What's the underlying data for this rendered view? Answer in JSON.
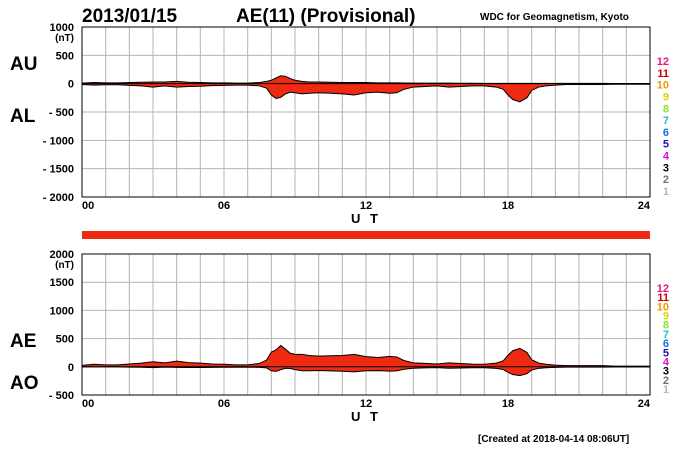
{
  "header": {
    "date": "2013/01/15",
    "title": "AE(11) (Provisional)",
    "source": "WDC for Geomagnetism, Kyoto"
  },
  "footer": {
    "created": "[Created at 2018-04-14 08:06UT]"
  },
  "colors": {
    "fill": "#ee2a12",
    "line": "#000000",
    "grid": "#b4b4b4",
    "bar": "#ee2a12"
  },
  "legend": {
    "items": [
      {
        "label": "12",
        "color": "#e8177f"
      },
      {
        "label": "11",
        "color": "#cc0000"
      },
      {
        "label": "10",
        "color": "#ee9a00"
      },
      {
        "label": "9",
        "color": "#d8d800"
      },
      {
        "label": "8",
        "color": "#90e030"
      },
      {
        "label": "7",
        "color": "#20c0d0"
      },
      {
        "label": "6",
        "color": "#1070e0"
      },
      {
        "label": "5",
        "color": "#2010b0"
      },
      {
        "label": "4",
        "color": "#d010d0"
      },
      {
        "label": "3",
        "color": "#000000"
      },
      {
        "label": "2",
        "color": "#707070"
      },
      {
        "label": "1",
        "color": "#b8b8b8"
      }
    ]
  },
  "chart_data": [
    {
      "type": "area",
      "upper_label": "AU",
      "lower_label": "AL",
      "unit": "(nT)",
      "xlabel": "U T",
      "xlim": [
        0,
        24
      ],
      "ylim": [
        -2000,
        1000
      ],
      "yticks": [
        1000,
        500,
        0,
        -500,
        -1000,
        -1500,
        -2000
      ],
      "ytick_labels": [
        "1000",
        "500",
        "0",
        "- 500",
        "- 1000",
        "- 1500",
        "- 2000"
      ],
      "xticks": [
        0,
        6,
        12,
        18,
        24
      ],
      "xtick_labels": [
        "00",
        "06",
        "12",
        "18",
        "24"
      ],
      "grid": true,
      "x": [
        0,
        0.5,
        1,
        1.5,
        2,
        2.5,
        3,
        3.5,
        4,
        4.5,
        5,
        5.5,
        6,
        6.5,
        7,
        7.5,
        7.8,
        8,
        8.2,
        8.4,
        8.6,
        8.8,
        9,
        9.3,
        9.6,
        10,
        10.5,
        11,
        11.5,
        12,
        12.5,
        13,
        13.3,
        13.6,
        14,
        14.5,
        15,
        15.5,
        16,
        16.5,
        17,
        17.5,
        17.8,
        18,
        18.2,
        18.5,
        18.8,
        19,
        19.3,
        19.6,
        20,
        20.5,
        21,
        21.5,
        22,
        22.5,
        23,
        23.5,
        24
      ],
      "series": [
        {
          "name": "AU",
          "values": [
            10,
            20,
            15,
            15,
            20,
            25,
            30,
            30,
            40,
            25,
            20,
            15,
            15,
            10,
            10,
            20,
            40,
            60,
            100,
            140,
            130,
            90,
            60,
            40,
            30,
            30,
            25,
            20,
            20,
            20,
            15,
            15,
            15,
            12,
            10,
            10,
            10,
            10,
            8,
            8,
            5,
            5,
            5,
            5,
            5,
            5,
            5,
            5,
            5,
            5,
            5,
            5,
            5,
            5,
            5,
            3,
            3,
            3,
            3
          ]
        },
        {
          "name": "AL",
          "values": [
            -15,
            -25,
            -20,
            -20,
            -30,
            -40,
            -60,
            -40,
            -60,
            -50,
            -45,
            -35,
            -30,
            -25,
            -25,
            -40,
            -80,
            -200,
            -260,
            -240,
            -180,
            -150,
            -160,
            -180,
            -170,
            -160,
            -170,
            -180,
            -200,
            -160,
            -150,
            -170,
            -160,
            -100,
            -60,
            -50,
            -40,
            -60,
            -50,
            -40,
            -40,
            -60,
            -100,
            -200,
            -280,
            -320,
            -250,
            -120,
            -60,
            -40,
            -25,
            -15,
            -15,
            -15,
            -15,
            -10,
            -10,
            -10,
            -10
          ]
        }
      ]
    },
    {
      "type": "area",
      "upper_label": "AE",
      "lower_label": "AO",
      "unit": "(nT)",
      "xlabel": "U T",
      "xlim": [
        0,
        24
      ],
      "ylim": [
        -500,
        2000
      ],
      "yticks": [
        2000,
        1500,
        1000,
        500,
        0,
        -500
      ],
      "ytick_labels": [
        "2000",
        "1500",
        "1000",
        "500",
        "0",
        "- 500"
      ],
      "xticks": [
        0,
        6,
        12,
        18,
        24
      ],
      "xtick_labels": [
        "00",
        "06",
        "12",
        "18",
        "24"
      ],
      "grid": true,
      "x": [
        0,
        0.5,
        1,
        1.5,
        2,
        2.5,
        3,
        3.5,
        4,
        4.5,
        5,
        5.5,
        6,
        6.5,
        7,
        7.5,
        7.8,
        8,
        8.2,
        8.4,
        8.6,
        8.8,
        9,
        9.3,
        9.6,
        10,
        10.5,
        11,
        11.5,
        12,
        12.5,
        13,
        13.3,
        13.6,
        14,
        14.5,
        15,
        15.5,
        16,
        16.5,
        17,
        17.5,
        17.8,
        18,
        18.2,
        18.5,
        18.8,
        19,
        19.3,
        19.6,
        20,
        20.5,
        21,
        21.5,
        22,
        22.5,
        23,
        23.5,
        24
      ],
      "series": [
        {
          "name": "AE",
          "values": [
            25,
            45,
            35,
            35,
            50,
            65,
            90,
            70,
            100,
            75,
            65,
            50,
            45,
            35,
            35,
            60,
            120,
            260,
            300,
            380,
            310,
            240,
            220,
            220,
            200,
            190,
            195,
            200,
            220,
            180,
            165,
            185,
            175,
            112,
            70,
            60,
            50,
            70,
            58,
            48,
            45,
            65,
            105,
            205,
            285,
            325,
            255,
            125,
            65,
            45,
            30,
            20,
            20,
            20,
            20,
            13,
            13,
            13,
            13
          ]
        },
        {
          "name": "AO",
          "values": [
            -2,
            -2,
            -2,
            -2,
            -5,
            -7,
            -15,
            -5,
            -10,
            -12,
            -12,
            -10,
            -7,
            -7,
            -7,
            -10,
            -20,
            -70,
            -80,
            -50,
            -25,
            -30,
            -50,
            -70,
            -70,
            -65,
            -72,
            -80,
            -90,
            -70,
            -67,
            -77,
            -72,
            -44,
            -25,
            -20,
            -15,
            -25,
            -21,
            -16,
            -17,
            -27,
            -47,
            -97,
            -137,
            -157,
            -122,
            -57,
            -27,
            -17,
            -10,
            -5,
            -5,
            -5,
            -5,
            -3,
            -3,
            -3,
            -3
          ]
        }
      ]
    }
  ]
}
